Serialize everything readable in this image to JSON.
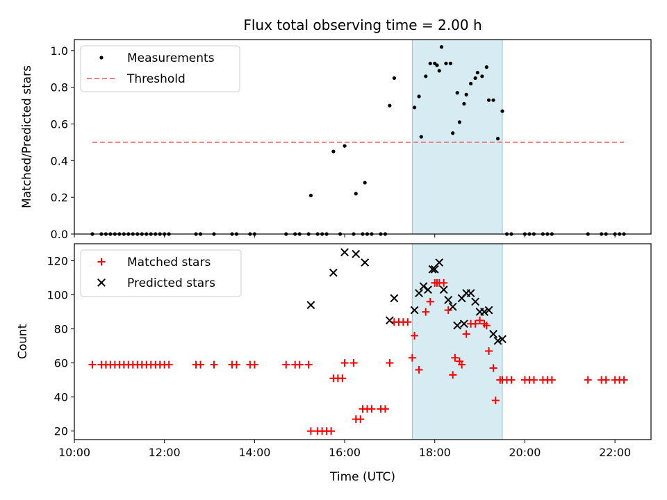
{
  "chart_data": [
    {
      "type": "scatter",
      "title": "Flux total observing time = 2.00 h",
      "ylabel": "Matched/Predicted stars",
      "xlabel": "",
      "ylim": [
        0,
        1.06
      ],
      "yticks": [
        "0.0",
        "0.2",
        "0.4",
        "0.6",
        "0.8",
        "1.0"
      ],
      "yticks_values": [
        0,
        0.2,
        0.4,
        0.6,
        0.8,
        1.0
      ],
      "legend_position": "top-left",
      "grid": false,
      "highlight_span": {
        "x": [
          17.5,
          19.5
        ],
        "color": "#add8e6"
      },
      "series": [
        {
          "name": "Measurements",
          "kind": "dot",
          "color": "#000000",
          "points": [
            [
              10.4,
              0
            ],
            [
              10.6,
              0
            ],
            [
              10.7,
              0
            ],
            [
              10.8,
              0
            ],
            [
              10.9,
              0
            ],
            [
              11.0,
              0
            ],
            [
              11.1,
              0
            ],
            [
              11.2,
              0
            ],
            [
              11.3,
              0
            ],
            [
              11.4,
              0
            ],
            [
              11.5,
              0
            ],
            [
              11.6,
              0
            ],
            [
              11.7,
              0
            ],
            [
              11.8,
              0
            ],
            [
              11.9,
              0
            ],
            [
              12.0,
              0
            ],
            [
              12.1,
              0
            ],
            [
              12.7,
              0
            ],
            [
              12.8,
              0
            ],
            [
              13.1,
              0
            ],
            [
              13.5,
              0
            ],
            [
              13.6,
              0
            ],
            [
              13.9,
              0
            ],
            [
              14.0,
              0
            ],
            [
              14.7,
              0
            ],
            [
              14.9,
              0
            ],
            [
              15.0,
              0
            ],
            [
              15.2,
              0
            ],
            [
              15.25,
              0.21
            ],
            [
              15.4,
              0
            ],
            [
              15.5,
              0
            ],
            [
              15.6,
              0
            ],
            [
              15.75,
              0.45
            ],
            [
              15.9,
              0
            ],
            [
              16.0,
              0.48
            ],
            [
              16.2,
              0
            ],
            [
              16.25,
              0.22
            ],
            [
              16.45,
              0.28
            ],
            [
              16.4,
              0
            ],
            [
              16.5,
              0
            ],
            [
              16.6,
              0
            ],
            [
              16.8,
              0
            ],
            [
              16.9,
              0
            ],
            [
              17.0,
              0.7
            ],
            [
              17.1,
              0.85
            ],
            [
              17.55,
              0.69
            ],
            [
              17.65,
              0.75
            ],
            [
              17.7,
              0.53
            ],
            [
              17.8,
              0.86
            ],
            [
              17.9,
              0.93
            ],
            [
              18.0,
              0.93
            ],
            [
              18.05,
              0.92
            ],
            [
              18.1,
              0.89
            ],
            [
              18.15,
              1.02
            ],
            [
              18.25,
              0.93
            ],
            [
              18.35,
              0.93
            ],
            [
              18.4,
              0.55
            ],
            [
              18.5,
              0.77
            ],
            [
              18.55,
              0.61
            ],
            [
              18.65,
              0.71
            ],
            [
              18.7,
              0.76
            ],
            [
              18.8,
              0.82
            ],
            [
              18.9,
              0.85
            ],
            [
              18.95,
              0.88
            ],
            [
              19.05,
              0.86
            ],
            [
              19.15,
              0.91
            ],
            [
              19.2,
              0.73
            ],
            [
              19.3,
              0.73
            ],
            [
              19.4,
              0.52
            ],
            [
              19.5,
              0.67
            ],
            [
              19.6,
              0
            ],
            [
              19.7,
              0
            ],
            [
              20.0,
              0
            ],
            [
              20.1,
              0
            ],
            [
              20.2,
              0
            ],
            [
              20.4,
              0
            ],
            [
              20.5,
              0
            ],
            [
              20.6,
              0
            ],
            [
              21.4,
              0
            ],
            [
              21.7,
              0
            ],
            [
              21.8,
              0
            ],
            [
              22.0,
              0
            ],
            [
              22.1,
              0
            ],
            [
              22.2,
              0
            ]
          ]
        },
        {
          "name": "Threshold",
          "kind": "dashed-line",
          "color": "#f08080",
          "points": [
            [
              10.4,
              0.5
            ],
            [
              22.2,
              0.5
            ]
          ]
        }
      ]
    },
    {
      "type": "scatter",
      "title": "",
      "ylabel": "Count",
      "xlabel": "Time (UTC)",
      "xlim": [
        10.0,
        22.8
      ],
      "xticks": [
        "10:00",
        "12:00",
        "14:00",
        "16:00",
        "18:00",
        "20:00",
        "22:00"
      ],
      "xticks_values": [
        10,
        12,
        14,
        16,
        18,
        20,
        22
      ],
      "ylim": [
        15,
        130
      ],
      "yticks": [
        "20",
        "40",
        "60",
        "80",
        "100",
        "120"
      ],
      "yticks_values": [
        20,
        40,
        60,
        80,
        100,
        120
      ],
      "legend_position": "top-left",
      "grid": false,
      "highlight_span": {
        "x": [
          17.5,
          19.5
        ],
        "color": "#add8e6"
      },
      "series": [
        {
          "name": "Matched stars",
          "kind": "plus",
          "color": "#ff0000",
          "points": [
            [
              10.4,
              59
            ],
            [
              10.6,
              59
            ],
            [
              10.7,
              59
            ],
            [
              10.8,
              59
            ],
            [
              10.9,
              59
            ],
            [
              11.0,
              59
            ],
            [
              11.1,
              59
            ],
            [
              11.2,
              59
            ],
            [
              11.3,
              59
            ],
            [
              11.4,
              59
            ],
            [
              11.5,
              59
            ],
            [
              11.6,
              59
            ],
            [
              11.7,
              59
            ],
            [
              11.8,
              59
            ],
            [
              11.9,
              59
            ],
            [
              12.0,
              59
            ],
            [
              12.1,
              59
            ],
            [
              12.7,
              59
            ],
            [
              12.8,
              59
            ],
            [
              13.1,
              59
            ],
            [
              13.5,
              59
            ],
            [
              13.6,
              59
            ],
            [
              13.9,
              59
            ],
            [
              14.0,
              59
            ],
            [
              14.7,
              59
            ],
            [
              14.9,
              59
            ],
            [
              15.0,
              59
            ],
            [
              15.2,
              59
            ],
            [
              15.25,
              20
            ],
            [
              15.4,
              20
            ],
            [
              15.5,
              20
            ],
            [
              15.6,
              20
            ],
            [
              15.7,
              20
            ],
            [
              15.75,
              51
            ],
            [
              15.85,
              51
            ],
            [
              15.95,
              51
            ],
            [
              16.0,
              60
            ],
            [
              16.2,
              60
            ],
            [
              16.25,
              27
            ],
            [
              16.35,
              27
            ],
            [
              16.4,
              33
            ],
            [
              16.5,
              33
            ],
            [
              16.6,
              33
            ],
            [
              16.8,
              33
            ],
            [
              16.9,
              33
            ],
            [
              17.0,
              60
            ],
            [
              17.1,
              84
            ],
            [
              17.2,
              84
            ],
            [
              17.3,
              84
            ],
            [
              17.4,
              84
            ],
            [
              17.5,
              63
            ],
            [
              17.55,
              76
            ],
            [
              17.65,
              56
            ],
            [
              17.8,
              90
            ],
            [
              17.9,
              96
            ],
            [
              18.0,
              107
            ],
            [
              18.05,
              107
            ],
            [
              18.1,
              107
            ],
            [
              18.2,
              107
            ],
            [
              18.3,
              91
            ],
            [
              18.4,
              53
            ],
            [
              18.45,
              63
            ],
            [
              18.55,
              61
            ],
            [
              18.6,
              59
            ],
            [
              18.7,
              77
            ],
            [
              18.8,
              83
            ],
            [
              18.9,
              83
            ],
            [
              19.0,
              85
            ],
            [
              19.1,
              83
            ],
            [
              19.15,
              82
            ],
            [
              19.2,
              67
            ],
            [
              19.3,
              57
            ],
            [
              19.35,
              38
            ],
            [
              19.45,
              50
            ],
            [
              19.5,
              50
            ],
            [
              19.6,
              50
            ],
            [
              19.7,
              50
            ],
            [
              20.0,
              50
            ],
            [
              20.1,
              50
            ],
            [
              20.2,
              50
            ],
            [
              20.4,
              50
            ],
            [
              20.5,
              50
            ],
            [
              20.6,
              50
            ],
            [
              21.4,
              50
            ],
            [
              21.7,
              50
            ],
            [
              21.8,
              50
            ],
            [
              22.0,
              50
            ],
            [
              22.1,
              50
            ],
            [
              22.2,
              50
            ]
          ]
        },
        {
          "name": "Predicted stars",
          "kind": "x",
          "color": "#000000",
          "points": [
            [
              15.25,
              94
            ],
            [
              15.75,
              113
            ],
            [
              16.0,
              125
            ],
            [
              16.25,
              124
            ],
            [
              16.45,
              119
            ],
            [
              17.0,
              85
            ],
            [
              17.1,
              98
            ],
            [
              17.55,
              91
            ],
            [
              17.65,
              101
            ],
            [
              17.75,
              105
            ],
            [
              17.85,
              103
            ],
            [
              17.95,
              115
            ],
            [
              18.0,
              115
            ],
            [
              18.1,
              119
            ],
            [
              18.2,
              103
            ],
            [
              18.3,
              97
            ],
            [
              18.4,
              93
            ],
            [
              18.5,
              82
            ],
            [
              18.6,
              98
            ],
            [
              18.65,
              83
            ],
            [
              18.7,
              101
            ],
            [
              18.8,
              101
            ],
            [
              18.9,
              96
            ],
            [
              19.0,
              90
            ],
            [
              19.1,
              90
            ],
            [
              19.2,
              91
            ],
            [
              19.3,
              77
            ],
            [
              19.4,
              73
            ],
            [
              19.5,
              74
            ]
          ]
        }
      ]
    }
  ]
}
